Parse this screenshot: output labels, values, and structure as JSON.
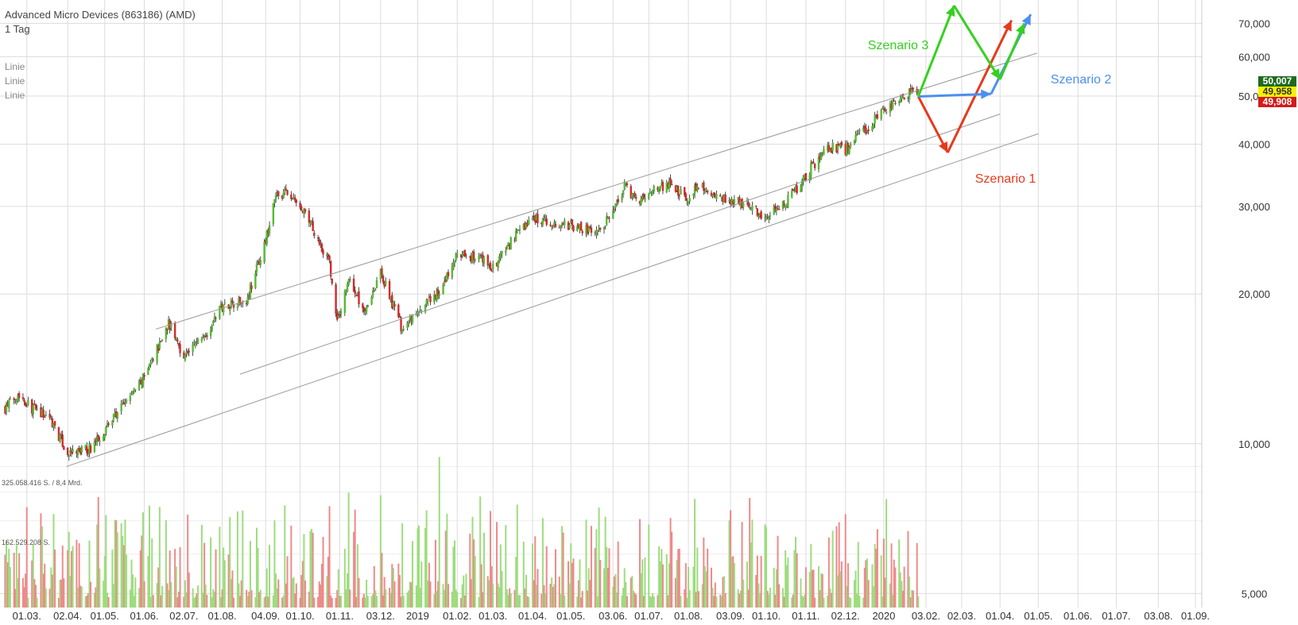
{
  "header": {
    "instrument": "Advanced Micro Devices (863186) (AMD)",
    "interval": "1 Tag",
    "indicators": [
      "Linie",
      "Linie",
      "Linie"
    ]
  },
  "volume_labels": [
    "325.058.416 S. / 8,4 Mrd.",
    "162.529.208 S."
  ],
  "price_badges": [
    {
      "value": "50,007",
      "bg": "#1e6b1e",
      "fg": "#ffffff"
    },
    {
      "value": "49,958",
      "bg": "#f5f200",
      "fg": "#333333"
    },
    {
      "value": "49,908",
      "bg": "#d41a1a",
      "fg": "#ffffff"
    }
  ],
  "colors": {
    "up": "#55bb33",
    "down": "#d42a2a",
    "vol_up": "#9edc7f",
    "vol_down": "#ee8a8a",
    "grid": "#dcdcdc",
    "channel": "#999999",
    "scenario1": "#e53a1e",
    "scenario2": "#4c8ff0",
    "scenario3": "#35d11f"
  },
  "chart_data": {
    "type": "candlestick",
    "title": "Advanced Micro Devices (863186) (AMD)",
    "y_scale": "log",
    "ylim": [
      5,
      78
    ],
    "y_ticks": [
      "70,000",
      "60,000",
      "50,000",
      "40,000",
      "30,000",
      "20,000",
      "10,000",
      "5,000"
    ],
    "y_tick_values": [
      70,
      60,
      50,
      40,
      30,
      20,
      10,
      5
    ],
    "x_tick_labels": [
      "01.03.",
      "02.04.",
      "01.05.",
      "01.06.",
      "02.07.",
      "01.08.",
      "04.09.",
      "01.10.",
      "01.11.",
      "03.12.",
      "2019",
      "01.02.",
      "01.03.",
      "01.04.",
      "01.05.",
      "03.06.",
      "01.07.",
      "01.08.",
      "03.09.",
      "01.10.",
      "01.11.",
      "02.12.",
      "2020",
      "03.02.",
      "02.03.",
      "01.04.",
      "01.05.",
      "01.06.",
      "01.07.",
      "03.08.",
      "01.09."
    ],
    "x_tick_dates": [
      "2018-03-01",
      "2018-04-02",
      "2018-05-01",
      "2018-06-01",
      "2018-07-02",
      "2018-08-01",
      "2018-09-04",
      "2018-10-01",
      "2018-11-01",
      "2018-12-03",
      "2019-01-01",
      "2019-02-01",
      "2019-03-01",
      "2019-04-01",
      "2019-05-01",
      "2019-06-03",
      "2019-07-01",
      "2019-08-01",
      "2019-09-03",
      "2019-10-01",
      "2019-11-01",
      "2019-12-02",
      "2020-01-01",
      "2020-02-03",
      "2020-03-02",
      "2020-04-01",
      "2020-05-01",
      "2020-06-01",
      "2020-07-01",
      "2020-08-03",
      "2020-09-01"
    ],
    "price_path": [
      [
        "2018-02-12",
        11.8
      ],
      [
        "2018-02-22",
        12.6
      ],
      [
        "2018-03-05",
        11.8
      ],
      [
        "2018-03-20",
        11.2
      ],
      [
        "2018-04-02",
        9.5
      ],
      [
        "2018-04-20",
        9.8
      ],
      [
        "2018-05-01",
        10.7
      ],
      [
        "2018-05-20",
        12.4
      ],
      [
        "2018-06-01",
        13.6
      ],
      [
        "2018-06-20",
        17.5
      ],
      [
        "2018-07-02",
        15.0
      ],
      [
        "2018-07-20",
        16.8
      ],
      [
        "2018-08-01",
        19.0
      ],
      [
        "2018-08-20",
        19.5
      ],
      [
        "2018-09-04",
        25.5
      ],
      [
        "2018-09-12",
        31.5
      ],
      [
        "2018-09-20",
        32.0
      ],
      [
        "2018-09-28",
        30.5
      ],
      [
        "2018-10-10",
        27.5
      ],
      [
        "2018-10-24",
        23.0
      ],
      [
        "2018-10-30",
        17.5
      ],
      [
        "2018-11-08",
        21.5
      ],
      [
        "2018-11-20",
        18.5
      ],
      [
        "2018-12-03",
        22.0
      ],
      [
        "2018-12-20",
        17.0
      ],
      [
        "2019-01-03",
        18.5
      ],
      [
        "2019-01-20",
        20.5
      ],
      [
        "2019-02-01",
        24.0
      ],
      [
        "2019-02-20",
        23.5
      ],
      [
        "2019-03-01",
        22.5
      ],
      [
        "2019-03-20",
        26.5
      ],
      [
        "2019-04-01",
        28.5
      ],
      [
        "2019-04-20",
        27.5
      ],
      [
        "2019-05-01",
        27.5
      ],
      [
        "2019-05-20",
        26.5
      ],
      [
        "2019-06-03",
        29.0
      ],
      [
        "2019-06-12",
        33.0
      ],
      [
        "2019-06-24",
        30.5
      ],
      [
        "2019-07-01",
        32.0
      ],
      [
        "2019-07-18",
        33.5
      ],
      [
        "2019-08-01",
        30.5
      ],
      [
        "2019-08-08",
        33.5
      ],
      [
        "2019-08-20",
        31.0
      ],
      [
        "2019-09-03",
        31.0
      ],
      [
        "2019-09-20",
        30.0
      ],
      [
        "2019-10-01",
        28.5
      ],
      [
        "2019-10-15",
        30.5
      ],
      [
        "2019-10-28",
        33.0
      ],
      [
        "2019-11-05",
        36.0
      ],
      [
        "2019-11-20",
        39.5
      ],
      [
        "2019-12-02",
        39.0
      ],
      [
        "2019-12-16",
        42.5
      ],
      [
        "2020-01-01",
        46.5
      ],
      [
        "2020-01-15",
        49.0
      ],
      [
        "2020-01-22",
        51.0
      ],
      [
        "2020-01-28",
        49.9
      ]
    ],
    "channel_lines": [
      {
        "from": [
          "2018-06-10",
          17.0
        ],
        "to": [
          "2020-04-30",
          61.0
        ]
      },
      {
        "from": [
          "2018-08-15",
          13.8
        ],
        "to": [
          "2020-04-01",
          46.0
        ]
      },
      {
        "from": [
          "2018-04-01",
          9.0
        ],
        "to": [
          "2020-05-01",
          42.0
        ]
      }
    ],
    "scenarios": [
      {
        "name": "Szenario 1",
        "points": [
          [
            "2020-01-28",
            49.9
          ],
          [
            "2020-02-20",
            38.5
          ],
          [
            "2020-04-10",
            71.0
          ]
        ]
      },
      {
        "name": "Szenario 2",
        "points": [
          [
            "2020-01-28",
            49.9
          ],
          [
            "2020-03-25",
            50.5
          ],
          [
            "2020-04-25",
            73.0
          ]
        ]
      },
      {
        "name": "Szenario 3",
        "points": [
          [
            "2020-01-28",
            49.9
          ],
          [
            "2020-02-25",
            76.0
          ],
          [
            "2020-04-01",
            54.0
          ],
          [
            "2020-04-20",
            70.0
          ]
        ]
      }
    ],
    "last_values": [
      "50,007",
      "49,958",
      "49,908"
    ]
  }
}
